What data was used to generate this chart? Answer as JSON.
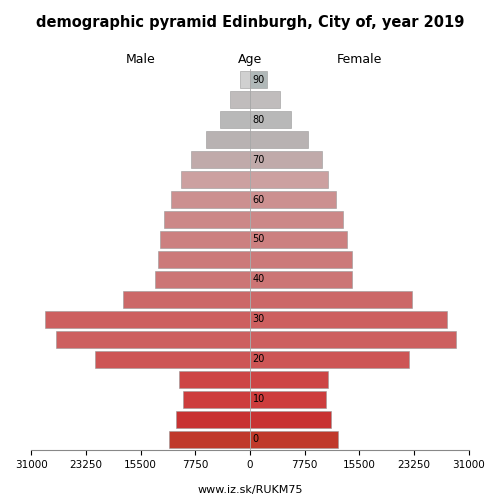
{
  "title": "demographic pyramid Edinburgh, City of, year 2019",
  "age_labels": [
    "0",
    "10",
    "20",
    "30",
    "40",
    "50",
    "60",
    "70",
    "80",
    "90"
  ],
  "age_ticks": [
    0,
    2,
    4,
    6,
    8,
    10,
    12,
    14,
    16,
    18
  ],
  "male": [
    11500,
    10500,
    9500,
    10000,
    22000,
    27500,
    29000,
    18000,
    13500,
    13000,
    12800,
    12200,
    11200,
    9800,
    8400,
    6200,
    4200,
    2800,
    1400
  ],
  "female": [
    12500,
    11500,
    10800,
    11000,
    22500,
    29200,
    28000,
    23000,
    14500,
    14500,
    13800,
    13200,
    12200,
    11000,
    10200,
    8200,
    5800,
    4200,
    2400
  ],
  "xlim": 31000,
  "xlabel_left": "Male",
  "xlabel_right": "Female",
  "xlabel_center": "Age",
  "footer": "www.iz.sk/RUKM75",
  "bar_height": 0.85,
  "figsize": [
    5.0,
    5.0
  ],
  "dpi": 100,
  "colors": {
    "age_0_4": "#c0392b",
    "age_5_9": "#c0392b",
    "age_10_14": "#cd4040",
    "age_15_19": "#cd4545",
    "age_20_24": "#cd5555",
    "age_25_29": "#d06060",
    "age_30_34": "#d06060",
    "age_35_39": "#cd6565",
    "age_40_44": "#cc7575",
    "age_45_49": "#cc7878",
    "age_50_54": "#cc8080",
    "age_55_59": "#cc8585",
    "age_60_64": "#cc9090",
    "age_65_69": "#cca0a0",
    "age_70_74": "#c0a8a8",
    "age_75_79": "#b8b0b0",
    "age_80_84": "#b8b8b8",
    "age_85_89": "#c0b8b8",
    "age_90p_m": "#d0d0d0",
    "age_90p_f": "#b0b8b8"
  }
}
